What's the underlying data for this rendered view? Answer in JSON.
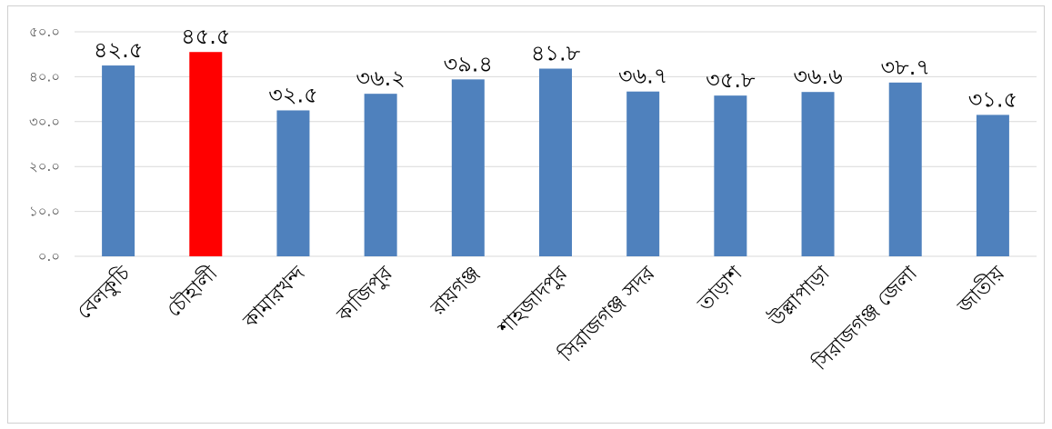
{
  "chart_data": {
    "type": "bar",
    "categories": [
      "বেলকুচি",
      "চৌহালী",
      "কামারখন্দ",
      "কাজিপুর",
      "রায়গঞ্জ",
      "শাহজাদপুর",
      "সিরাজগঞ্জ সদর",
      "তাড়াশ",
      "উল্লাপাড়া",
      "সিরাজগঞ্জ জেলা",
      "জাতীয়"
    ],
    "values": [
      42.5,
      45.5,
      32.5,
      36.2,
      39.4,
      41.8,
      36.7,
      35.8,
      36.6,
      38.7,
      31.5
    ],
    "data_labels": [
      "৪২.৫",
      "৪৫.৫",
      "৩২.৫",
      "৩৬.২",
      "৩৯.৪",
      "৪১.৮",
      "৩৬.৭",
      "৩৫.৮",
      "৩৬.৬",
      "৩৮.৭",
      "৩১.৫"
    ],
    "y_tick_labels": [
      "০.০",
      "১০.০",
      "২০.০",
      "৩০.০",
      "৪০.০",
      "৫০.০"
    ],
    "ylim": [
      0,
      50
    ],
    "grid": true,
    "legend": "none",
    "colors": {
      "default": "#4f81bd",
      "highlight": "#ff0000"
    },
    "highlight_index": 1,
    "title": "",
    "xlabel": "",
    "ylabel": ""
  }
}
